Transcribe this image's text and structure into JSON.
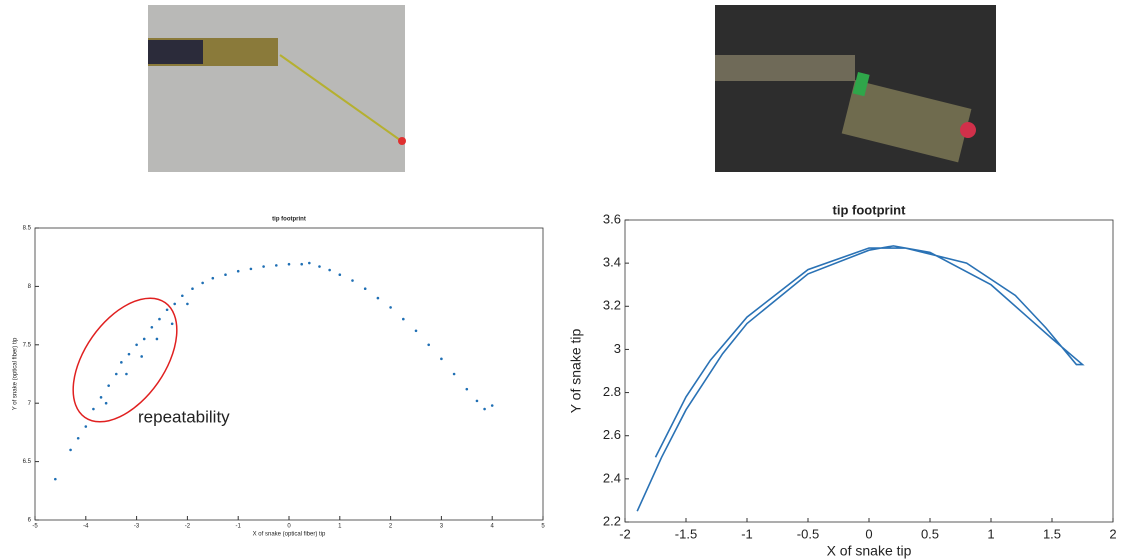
{
  "chart_data": [
    {
      "type": "scatter",
      "title": "tip footprint",
      "x_label": "X of snake (optical fiber) tip",
      "y_label": "Y of snake (optical fiber) tip",
      "annotation": "repeatability",
      "color": "#1f6fb4",
      "x": [
        -4.6,
        -4.3,
        -4.15,
        -4.0,
        -3.85,
        -3.7,
        -3.55,
        -3.4,
        -3.3,
        -3.15,
        -3.0,
        -2.85,
        -2.7,
        -2.55,
        -2.4,
        -2.25,
        -2.1,
        -1.9,
        -1.7,
        -1.5,
        -1.25,
        -1.0,
        -0.75,
        -0.5,
        -0.25,
        0.0,
        0.25,
        0.4,
        0.6,
        0.8,
        1.0,
        1.25,
        1.5,
        1.75,
        2.0,
        2.25,
        2.5,
        2.75,
        3.0,
        3.25,
        3.5,
        3.7,
        3.85,
        4.0,
        -3.6,
        -3.2,
        -2.9,
        -2.6,
        -2.3,
        -2.0
      ],
      "values": [
        6.35,
        6.6,
        6.7,
        6.8,
        6.95,
        7.05,
        7.15,
        7.25,
        7.35,
        7.42,
        7.5,
        7.55,
        7.65,
        7.72,
        7.8,
        7.85,
        7.92,
        7.98,
        8.03,
        8.07,
        8.1,
        8.13,
        8.15,
        8.17,
        8.18,
        8.19,
        8.19,
        8.2,
        8.17,
        8.14,
        8.1,
        8.05,
        7.98,
        7.9,
        7.82,
        7.72,
        7.62,
        7.5,
        7.38,
        7.25,
        7.12,
        7.02,
        6.95,
        6.98,
        7.0,
        7.25,
        7.4,
        7.55,
        7.68,
        7.85
      ],
      "xlim": [
        -5,
        5
      ],
      "xticks": [
        -5,
        -4,
        -3,
        -2,
        -1,
        0,
        1,
        2,
        3,
        4,
        5
      ],
      "ylim": [
        6,
        8.5
      ],
      "yticks": [
        6,
        6.5,
        7,
        7.5,
        8,
        8.5
      ]
    },
    {
      "type": "line",
      "title": "tip footprint",
      "x_label": "X of snake tip",
      "y_label": "Y of snake tip",
      "color": "#2a72b5",
      "x": [
        -1.9,
        -1.7,
        -1.5,
        -1.2,
        -1.0,
        -0.5,
        0.0,
        0.2,
        0.5,
        1.0,
        1.3,
        1.5,
        1.75,
        1.7,
        1.45,
        1.2,
        0.8,
        0.3,
        0.0,
        -0.5,
        -1.0,
        -1.3,
        -1.5,
        -1.75
      ],
      "values": [
        2.25,
        2.5,
        2.72,
        2.98,
        3.12,
        3.35,
        3.46,
        3.48,
        3.45,
        3.3,
        3.15,
        3.05,
        2.93,
        2.93,
        3.1,
        3.25,
        3.4,
        3.47,
        3.47,
        3.37,
        3.15,
        2.95,
        2.78,
        2.5
      ],
      "xlim": [
        -2,
        2
      ],
      "xticks": [
        -2,
        -1.5,
        -1,
        -0.5,
        0,
        0.5,
        1,
        1.5,
        2
      ],
      "ylim": [
        2.2,
        3.6
      ],
      "yticks": [
        2.2,
        2.4,
        2.6,
        2.8,
        3,
        3.2,
        3.4,
        3.6
      ]
    }
  ]
}
